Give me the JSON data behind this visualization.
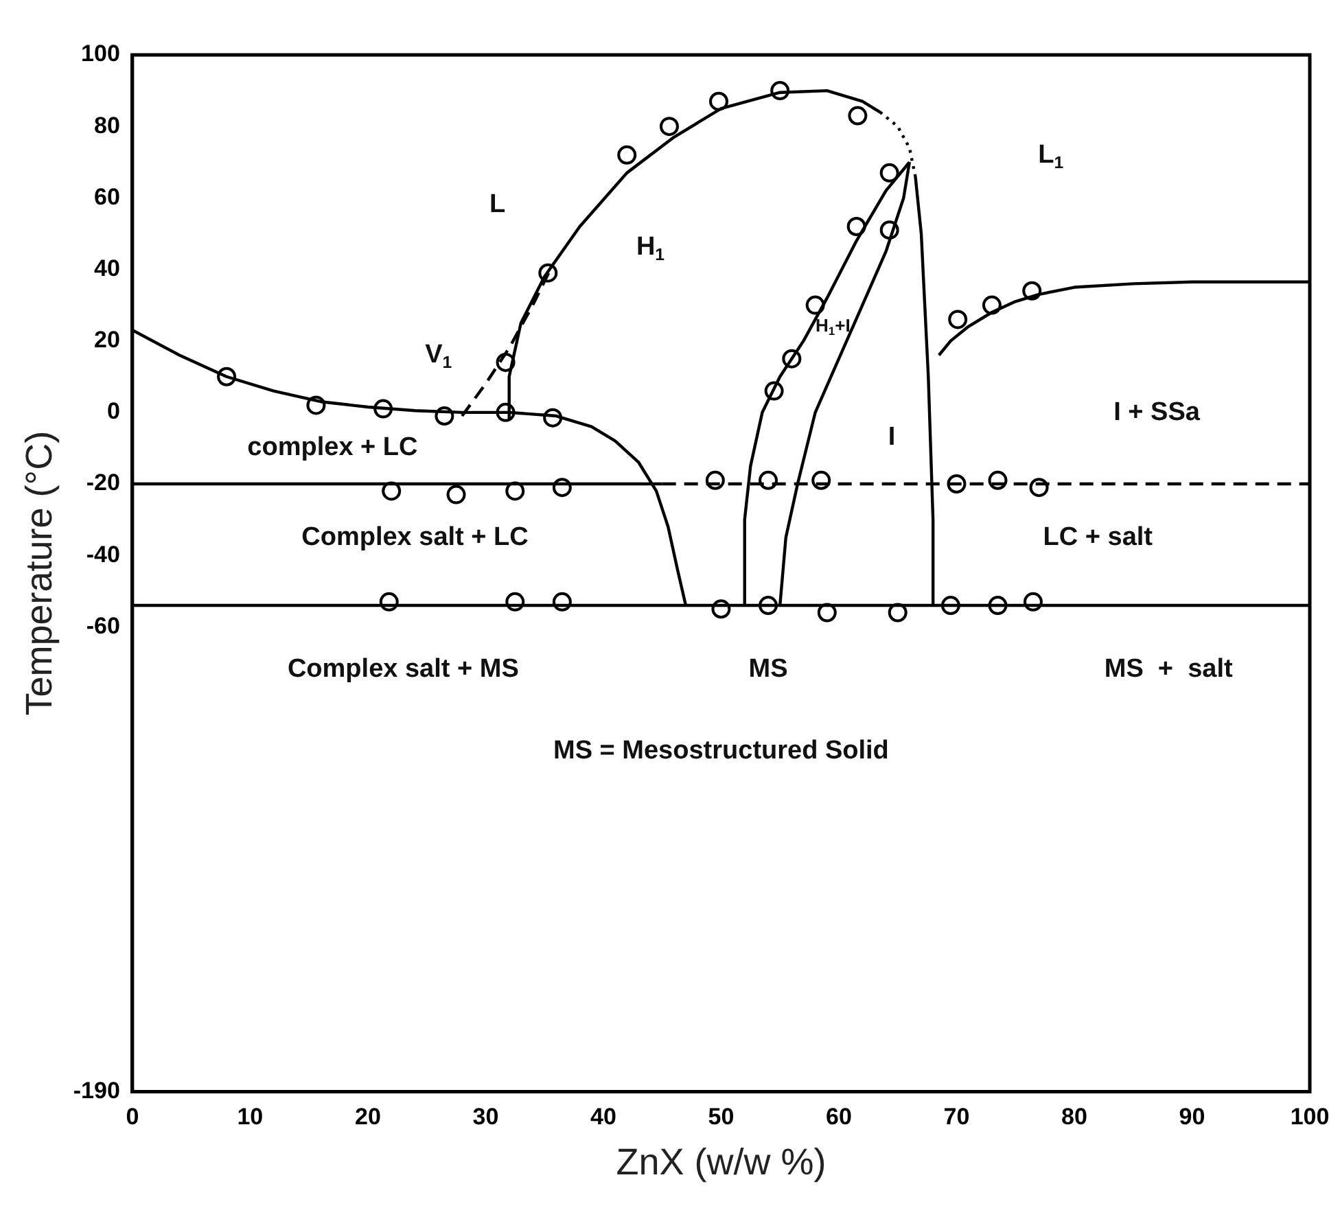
{
  "chart_data": {
    "type": "line",
    "xlabel": "ZnX (w/w %)",
    "ylabel": "Temperature (°C)",
    "xlim": [
      0,
      100
    ],
    "xticks": [
      0,
      10,
      20,
      30,
      40,
      50,
      60,
      70,
      80,
      90,
      100
    ],
    "ylim": [
      -190,
      100
    ],
    "yticks": [
      -190,
      -60,
      -40,
      -20,
      0,
      20,
      40,
      60,
      80,
      100
    ],
    "grid": false,
    "legend": false,
    "series": [
      {
        "color": "#000000",
        "marker": "none",
        "line_style": "solid",
        "x": [
          0,
          4,
          8,
          12,
          16,
          20,
          24,
          28,
          32,
          36,
          39,
          41,
          43,
          44.5,
          45.5,
          46.3,
          47
        ],
        "values": [
          23,
          16,
          10,
          6,
          3,
          1.5,
          0.5,
          0,
          0,
          -1,
          -4,
          -8,
          -14,
          -22,
          -32,
          -44,
          -54
        ]
      },
      {
        "color": "#000000",
        "marker": "none",
        "line_style": "solid",
        "x": [
          32,
          32,
          33,
          35,
          38,
          42,
          46,
          50,
          55,
          59,
          62,
          63.5
        ],
        "values": [
          -2,
          10,
          25,
          38,
          52,
          67,
          77,
          85,
          89.5,
          90,
          87,
          84
        ]
      },
      {
        "color": "#000000",
        "marker": "none",
        "line_style": "dotted",
        "x": [
          63.5,
          65,
          66,
          66.5
        ],
        "values": [
          84,
          80,
          74,
          66
        ]
      },
      {
        "color": "#000000",
        "marker": "none",
        "line_style": "solid",
        "x": [
          66.5,
          67,
          67.3,
          67.6,
          67.8,
          68,
          68
        ],
        "values": [
          66,
          50,
          30,
          10,
          -10,
          -30,
          -54
        ]
      },
      {
        "color": "#000000",
        "marker": "none",
        "line_style": "dashed",
        "x": [
          28,
          30,
          32,
          34,
          35.5
        ],
        "values": [
          -1,
          8,
          18,
          30,
          40
        ]
      },
      {
        "color": "#000000",
        "marker": "none",
        "line_style": "solid",
        "x": [
          52,
          52,
          52.5,
          53.5,
          55,
          57,
          59,
          61.5,
          64,
          66
        ],
        "values": [
          -54,
          -30,
          -15,
          0,
          10,
          20,
          32,
          48,
          62,
          70
        ]
      },
      {
        "color": "#000000",
        "marker": "none",
        "line_style": "solid",
        "x": [
          55,
          55.5,
          56.5,
          58,
          60,
          62,
          64,
          65.5,
          66
        ],
        "values": [
          -54,
          -35,
          -20,
          0,
          15,
          30,
          45,
          60,
          70
        ]
      },
      {
        "color": "#000000",
        "marker": "none",
        "line_style": "solid",
        "x": [
          68.5,
          69.5,
          71,
          73,
          75,
          77,
          80,
          85,
          90,
          100
        ],
        "values": [
          16,
          20,
          24,
          28,
          31,
          33,
          35,
          36,
          36.5,
          36.5
        ]
      },
      {
        "color": "#000000",
        "marker": "none",
        "line_style": "solid",
        "x": [
          0,
          45
        ],
        "values": [
          -20,
          -20
        ]
      },
      {
        "color": "#000000",
        "marker": "none",
        "line_style": "dashed",
        "x": [
          45,
          100
        ],
        "values": [
          -20,
          -20
        ]
      },
      {
        "color": "#000000",
        "marker": "none",
        "line_style": "solid",
        "x": [
          0,
          100
        ],
        "values": [
          -54,
          -54
        ]
      },
      {
        "type": "scatter",
        "color": "#000000",
        "marker": "circle",
        "x": [
          8,
          15.6,
          21.3,
          26.5,
          31.7,
          31.7,
          35.7,
          35.3,
          42,
          45.6,
          49.8,
          55,
          61.6,
          58,
          56,
          54.5,
          61.5,
          64.3,
          64.3,
          70.1,
          73,
          76.4,
          22,
          27.5,
          32.5,
          36.5,
          49.5,
          54,
          58.5,
          70,
          73.5,
          77,
          21.8,
          32.5,
          36.5,
          50,
          54,
          59,
          65,
          69.5,
          73.5,
          76.5
        ],
        "values": [
          10,
          2,
          1,
          -1,
          0,
          14,
          -1.5,
          39,
          72,
          80,
          87,
          90,
          83,
          30,
          15,
          6,
          52,
          67,
          51,
          26,
          30,
          34,
          -22,
          -23,
          -22,
          -21,
          -19,
          -19,
          -19,
          -20,
          -19,
          -21,
          -53,
          -53,
          -53,
          -55,
          -54,
          -56,
          -56,
          -54,
          -54,
          -53
        ]
      }
    ],
    "annotations": [
      "L",
      "H$_{1}$",
      "L$_{1}$",
      "V$_{1}$",
      "H$_{1}$+I",
      "I",
      "I + SSa",
      "complex + LC",
      "Complex salt + LC",
      "LC + salt",
      "Complex salt + MS",
      "MS",
      "MS  +  salt",
      "MS = Mesostructured Solid"
    ]
  }
}
